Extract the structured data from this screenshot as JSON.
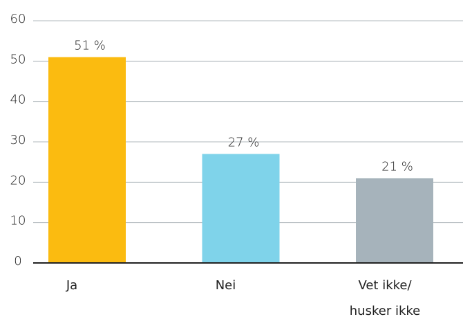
{
  "chart_data": {
    "type": "bar",
    "categories": [
      "Ja",
      "Nei",
      "Vet ikke/ husker ikke"
    ],
    "values": [
      51,
      27,
      21
    ],
    "value_labels": [
      "51 %",
      "27 %",
      "21 %"
    ],
    "colors": [
      "#fbbb10",
      "#7fd3ea",
      "#a6b3bb"
    ],
    "ylim": [
      0,
      60
    ],
    "yticks": [
      0,
      10,
      20,
      30,
      40,
      50,
      60
    ],
    "grid": true
  }
}
